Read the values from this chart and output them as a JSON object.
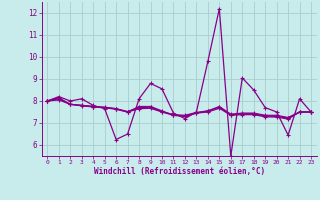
{
  "xlabel": "Windchill (Refroidissement éolien,°C)",
  "background_color": "#c8ecec",
  "grid_color": "#aacccc",
  "line_color": "#880088",
  "xlim": [
    -0.5,
    23.5
  ],
  "ylim": [
    5.5,
    12.5
  ],
  "yticks": [
    6,
    7,
    8,
    9,
    10,
    11,
    12
  ],
  "xticks": [
    0,
    1,
    2,
    3,
    4,
    5,
    6,
    7,
    8,
    9,
    10,
    11,
    12,
    13,
    14,
    15,
    16,
    17,
    18,
    19,
    20,
    21,
    22,
    23
  ],
  "series1": [
    8.0,
    8.2,
    8.0,
    8.1,
    7.8,
    7.65,
    6.25,
    6.5,
    8.1,
    8.8,
    8.55,
    7.45,
    7.2,
    7.5,
    9.8,
    12.2,
    5.5,
    9.05,
    8.5,
    7.7,
    7.5,
    6.45,
    8.1,
    7.5
  ],
  "series2": [
    8.0,
    8.15,
    7.85,
    7.8,
    7.75,
    7.7,
    7.65,
    7.5,
    7.75,
    7.75,
    7.55,
    7.35,
    7.3,
    7.45,
    7.55,
    7.75,
    7.4,
    7.45,
    7.45,
    7.35,
    7.35,
    7.25,
    7.5,
    7.5
  ],
  "series3": [
    8.0,
    8.1,
    7.85,
    7.8,
    7.75,
    7.72,
    7.65,
    7.52,
    7.7,
    7.72,
    7.52,
    7.38,
    7.35,
    7.48,
    7.55,
    7.72,
    7.38,
    7.42,
    7.42,
    7.32,
    7.3,
    7.22,
    7.5,
    7.5
  ],
  "series4": [
    8.0,
    8.05,
    7.85,
    7.78,
    7.73,
    7.7,
    7.62,
    7.5,
    7.65,
    7.67,
    7.5,
    7.35,
    7.32,
    7.45,
    7.5,
    7.67,
    7.35,
    7.38,
    7.38,
    7.28,
    7.27,
    7.18,
    7.5,
    7.5
  ]
}
